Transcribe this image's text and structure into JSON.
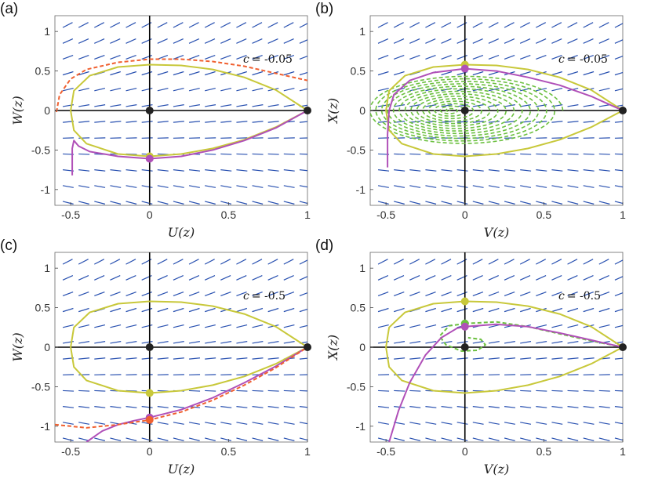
{
  "chart_data": [
    {
      "type": "phase-portrait",
      "panel_label": "(a)",
      "annotation_c": "c",
      "annotation_value": "= -0.05",
      "xlabel_var": "U",
      "ylabel_var": "W",
      "arg": "(z)",
      "xlim": [
        -0.6,
        1.0
      ],
      "ylim": [
        -1.2,
        1.2
      ],
      "xticks": [
        "-0.5",
        "0",
        "0.5",
        "1"
      ],
      "xtick_values": [
        -0.5,
        0,
        0.5,
        1
      ],
      "yticks": [
        "1",
        "0.5",
        "0",
        "-0.5",
        "-1"
      ],
      "ytick_values": [
        1,
        0.5,
        0,
        -0.5,
        -1
      ],
      "curves": [
        {
          "name": "loop",
          "color": "#c8c83a",
          "style": "solid",
          "points": [
            [
              1,
              0
            ],
            [
              0.8,
              0.26
            ],
            [
              0.6,
              0.42
            ],
            [
              0.4,
              0.52
            ],
            [
              0.2,
              0.57
            ],
            [
              0,
              0.58
            ],
            [
              -0.2,
              0.55
            ],
            [
              -0.38,
              0.44
            ],
            [
              -0.48,
              0.25
            ],
            [
              -0.5,
              0
            ],
            [
              -0.48,
              -0.25
            ],
            [
              -0.4,
              -0.42
            ],
            [
              -0.2,
              -0.55
            ],
            [
              0,
              -0.58
            ],
            [
              0.2,
              -0.55
            ],
            [
              0.4,
              -0.48
            ],
            [
              0.6,
              -0.37
            ],
            [
              0.8,
              -0.21
            ],
            [
              1,
              0
            ]
          ]
        },
        {
          "name": "orbit",
          "color": "#b050b8",
          "style": "solid",
          "points": [
            [
              -0.49,
              -0.82
            ],
            [
              -0.49,
              -0.48
            ],
            [
              -0.48,
              -0.38
            ],
            [
              -0.45,
              -0.45
            ],
            [
              -0.38,
              -0.52
            ],
            [
              -0.2,
              -0.58
            ],
            [
              0,
              -0.61
            ],
            [
              0.2,
              -0.58
            ],
            [
              0.4,
              -0.5
            ],
            [
              0.6,
              -0.38
            ],
            [
              0.8,
              -0.22
            ],
            [
              1,
              0
            ]
          ]
        },
        {
          "name": "dashed",
          "color": "#f06030",
          "style": "dashed",
          "points": [
            [
              -0.59,
              -0.02
            ],
            [
              -0.57,
              0.2
            ],
            [
              -0.5,
              0.4
            ],
            [
              -0.4,
              0.52
            ],
            [
              -0.2,
              0.61
            ],
            [
              0,
              0.65
            ],
            [
              0.2,
              0.65
            ],
            [
              0.4,
              0.62
            ],
            [
              0.6,
              0.56
            ],
            [
              0.8,
              0.47
            ],
            [
              1,
              0.38
            ]
          ]
        }
      ],
      "markers": [
        {
          "x": 0,
          "y": 0,
          "color": "#222222"
        },
        {
          "x": 1,
          "y": 0,
          "color": "#222222"
        },
        {
          "x": 0,
          "y": -0.58,
          "color": "#c8c83a"
        },
        {
          "x": 0,
          "y": -0.61,
          "color": "#b050b8"
        }
      ]
    },
    {
      "type": "phase-portrait",
      "panel_label": "(b)",
      "annotation_c": "c",
      "annotation_value": "= -0.05",
      "xlabel_var": "V",
      "ylabel_var": "X",
      "arg": "(z)",
      "xlim": [
        -0.6,
        1.0
      ],
      "ylim": [
        -1.2,
        1.2
      ],
      "xticks": [
        "-0.5",
        "0",
        "0.5",
        "1"
      ],
      "xtick_values": [
        -0.5,
        0,
        0.5,
        1
      ],
      "yticks": [
        "1",
        "0.5",
        "0",
        "-0.5",
        "-1"
      ],
      "ytick_values": [
        1,
        0.5,
        0,
        -0.5,
        -1
      ],
      "spiral": {
        "color": "#6cc040",
        "rx_max": 0.62,
        "ry_max": 0.44,
        "turns": 14,
        "cx": 0.0,
        "cy": 0.0,
        "offset": 0.1
      },
      "curves": [
        {
          "name": "loop",
          "color": "#c8c83a",
          "style": "solid",
          "points": [
            [
              1,
              0
            ],
            [
              0.8,
              0.26
            ],
            [
              0.6,
              0.42
            ],
            [
              0.4,
              0.52
            ],
            [
              0.2,
              0.57
            ],
            [
              0,
              0.58
            ],
            [
              -0.2,
              0.55
            ],
            [
              -0.38,
              0.44
            ],
            [
              -0.48,
              0.25
            ],
            [
              -0.5,
              0
            ],
            [
              -0.48,
              -0.25
            ],
            [
              -0.4,
              -0.42
            ],
            [
              -0.2,
              -0.55
            ],
            [
              0,
              -0.58
            ],
            [
              0.2,
              -0.55
            ],
            [
              0.4,
              -0.48
            ],
            [
              0.6,
              -0.37
            ],
            [
              0.8,
              -0.21
            ],
            [
              1,
              0
            ]
          ]
        },
        {
          "name": "orbit",
          "color": "#b050b8",
          "style": "solid",
          "points": [
            [
              -0.49,
              -0.72
            ],
            [
              -0.49,
              -0.3
            ],
            [
              -0.48,
              0.0
            ],
            [
              -0.45,
              0.2
            ],
            [
              -0.35,
              0.38
            ],
            [
              -0.2,
              0.48
            ],
            [
              0,
              0.53
            ],
            [
              0.2,
              0.5
            ],
            [
              0.4,
              0.42
            ],
            [
              0.6,
              0.32
            ],
            [
              0.8,
              0.18
            ],
            [
              1,
              0
            ]
          ]
        }
      ],
      "markers": [
        {
          "x": 0,
          "y": 0,
          "color": "#222222"
        },
        {
          "x": 1,
          "y": 0,
          "color": "#222222"
        },
        {
          "x": 0,
          "y": 0.58,
          "color": "#c8c83a"
        },
        {
          "x": 0,
          "y": 0.53,
          "color": "#b050b8"
        }
      ]
    },
    {
      "type": "phase-portrait",
      "panel_label": "(c)",
      "annotation_c": "c",
      "annotation_value": "= -0.5",
      "xlabel_var": "U",
      "ylabel_var": "W",
      "arg": "(z)",
      "xlim": [
        -0.6,
        1.0
      ],
      "ylim": [
        -1.2,
        1.2
      ],
      "xticks": [
        "-0.5",
        "0",
        "0.5",
        "1"
      ],
      "xtick_values": [
        -0.5,
        0,
        0.5,
        1
      ],
      "yticks": [
        "1",
        "0.5",
        "0",
        "-0.5",
        "-1"
      ],
      "ytick_values": [
        1,
        0.5,
        0,
        -0.5,
        -1
      ],
      "curves": [
        {
          "name": "loop",
          "color": "#c8c83a",
          "style": "solid",
          "points": [
            [
              1,
              0
            ],
            [
              0.8,
              0.26
            ],
            [
              0.6,
              0.42
            ],
            [
              0.4,
              0.52
            ],
            [
              0.2,
              0.57
            ],
            [
              0,
              0.58
            ],
            [
              -0.2,
              0.55
            ],
            [
              -0.38,
              0.44
            ],
            [
              -0.48,
              0.25
            ],
            [
              -0.5,
              0
            ],
            [
              -0.48,
              -0.25
            ],
            [
              -0.4,
              -0.42
            ],
            [
              -0.2,
              -0.55
            ],
            [
              0,
              -0.58
            ],
            [
              0.2,
              -0.55
            ],
            [
              0.4,
              -0.48
            ],
            [
              0.6,
              -0.37
            ],
            [
              0.8,
              -0.21
            ],
            [
              1,
              0
            ]
          ]
        },
        {
          "name": "orbit",
          "color": "#b050b8",
          "style": "solid",
          "points": [
            [
              -0.4,
              -1.2
            ],
            [
              -0.3,
              -1.06
            ],
            [
              -0.2,
              -0.98
            ],
            [
              -0.1,
              -0.93
            ],
            [
              0,
              -0.89
            ],
            [
              0.2,
              -0.79
            ],
            [
              0.4,
              -0.64
            ],
            [
              0.6,
              -0.45
            ],
            [
              0.8,
              -0.24
            ],
            [
              1,
              0
            ]
          ]
        },
        {
          "name": "dashed",
          "color": "#f06030",
          "style": "dashed",
          "points": [
            [
              -0.6,
              -0.98
            ],
            [
              -0.5,
              -1.0
            ],
            [
              -0.4,
              -1.02
            ],
            [
              -0.3,
              -1.0
            ],
            [
              -0.2,
              -0.98
            ],
            [
              -0.1,
              -0.95
            ],
            [
              0,
              -0.92
            ],
            [
              0.2,
              -0.82
            ],
            [
              0.4,
              -0.67
            ],
            [
              0.6,
              -0.48
            ],
            [
              0.8,
              -0.26
            ],
            [
              1,
              0
            ]
          ]
        }
      ],
      "markers": [
        {
          "x": 0,
          "y": 0,
          "color": "#222222"
        },
        {
          "x": 1,
          "y": 0,
          "color": "#222222"
        },
        {
          "x": 0,
          "y": -0.58,
          "color": "#c8c83a"
        },
        {
          "x": 0,
          "y": -0.89,
          "color": "#b050b8"
        },
        {
          "x": 0,
          "y": -0.92,
          "color": "#f06030"
        }
      ]
    },
    {
      "type": "phase-portrait",
      "panel_label": "(d)",
      "annotation_c": "c",
      "annotation_value": "= -0.5",
      "xlabel_var": "V",
      "ylabel_var": "X",
      "arg": "(z)",
      "xlim": [
        -0.6,
        1.0
      ],
      "ylim": [
        -1.2,
        1.2
      ],
      "xticks": [
        "-0.5",
        "0",
        "0.5",
        "1"
      ],
      "xtick_values": [
        -0.5,
        0,
        0.5,
        1
      ],
      "yticks": [
        "1",
        "0.5",
        "0",
        "-0.5",
        "-1"
      ],
      "ytick_values": [
        1,
        0.5,
        0,
        -0.5,
        -1
      ],
      "curves": [
        {
          "name": "loop",
          "color": "#c8c83a",
          "style": "solid",
          "points": [
            [
              1,
              0
            ],
            [
              0.8,
              0.26
            ],
            [
              0.6,
              0.42
            ],
            [
              0.4,
              0.52
            ],
            [
              0.2,
              0.57
            ],
            [
              0,
              0.58
            ],
            [
              -0.2,
              0.55
            ],
            [
              -0.38,
              0.44
            ],
            [
              -0.48,
              0.25
            ],
            [
              -0.5,
              0
            ],
            [
              -0.48,
              -0.25
            ],
            [
              -0.4,
              -0.42
            ],
            [
              -0.2,
              -0.55
            ],
            [
              0,
              -0.58
            ],
            [
              0.2,
              -0.55
            ],
            [
              0.4,
              -0.48
            ],
            [
              0.6,
              -0.37
            ],
            [
              0.8,
              -0.21
            ],
            [
              1,
              0
            ]
          ]
        },
        {
          "name": "green-dashed",
          "color": "#6cc040",
          "style": "dashed",
          "points": [
            [
              0,
              0.3
            ],
            [
              0.2,
              0.32
            ],
            [
              0.4,
              0.26
            ],
            [
              0.6,
              0.17
            ],
            [
              0.8,
              0.08
            ],
            [
              1,
              0
            ]
          ]
        },
        {
          "name": "green-spiral",
          "color": "#6cc040",
          "style": "dashed",
          "points": [
            [
              0,
              0.3
            ],
            [
              -0.1,
              0.27
            ],
            [
              -0.16,
              0.14
            ],
            [
              -0.12,
              0.03
            ],
            [
              -0.02,
              -0.05
            ],
            [
              0.08,
              -0.04
            ],
            [
              0.13,
              0.03
            ],
            [
              0.1,
              0.1
            ],
            [
              0.02,
              0.12
            ]
          ]
        },
        {
          "name": "orbit",
          "color": "#b050b8",
          "style": "solid",
          "points": [
            [
              -0.48,
              -1.2
            ],
            [
              -0.42,
              -0.8
            ],
            [
              -0.35,
              -0.45
            ],
            [
              -0.25,
              -0.1
            ],
            [
              -0.15,
              0.12
            ],
            [
              -0.05,
              0.24
            ],
            [
              0,
              0.26
            ],
            [
              0.2,
              0.29
            ],
            [
              0.4,
              0.26
            ],
            [
              0.6,
              0.18
            ],
            [
              0.8,
              0.09
            ],
            [
              1,
              0
            ]
          ]
        }
      ],
      "markers": [
        {
          "x": 0,
          "y": 0,
          "color": "#222222"
        },
        {
          "x": 1,
          "y": 0,
          "color": "#222222"
        },
        {
          "x": 0,
          "y": 0.58,
          "color": "#c8c83a"
        },
        {
          "x": 0,
          "y": 0.3,
          "color": "#6cc040"
        },
        {
          "x": 0,
          "y": 0.26,
          "color": "#b050b8"
        }
      ]
    }
  ],
  "colors": {
    "quiver": "#2850b0",
    "axes": "#000000",
    "grid": "#e4e4e4"
  }
}
